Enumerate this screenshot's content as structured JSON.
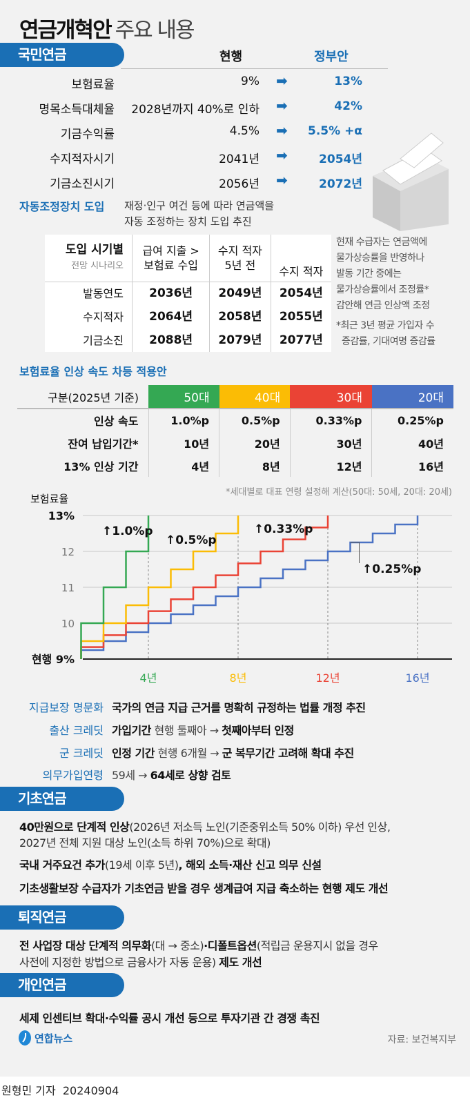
{
  "title": {
    "bold": "연금개혁안",
    "light": "주요 내용"
  },
  "national": {
    "section": "국민연금",
    "col_current": "현행",
    "col_gov": "정부안",
    "rows": [
      {
        "label": "보험료율",
        "current": "9%",
        "gov": "13%"
      },
      {
        "label": "명목소득대체율",
        "current": "2028년까지 40%로 인하",
        "gov": "42%"
      },
      {
        "label": "기금수익률",
        "current": "4.5%",
        "gov": "5.5% +α"
      },
      {
        "label": "수지적자시기",
        "current": "2041년",
        "gov": "2054년"
      },
      {
        "label": "기금소진시기",
        "current": "2056년",
        "gov": "2072년"
      }
    ],
    "arrow_icon": "right-arrow-icon",
    "auto": {
      "label": "자동조정장치 도입",
      "desc1": "재정·인구 여건 등에 따라 연금액을",
      "desc2": "자동 조정하는 장치 도입 추진"
    },
    "scenario": {
      "h0a": "도입 시기별",
      "h0b": "전망 시나리오",
      "h1a": "급여 지출 >",
      "h1b": "보험료 수입",
      "h2a": "수지 적자",
      "h2b": "5년 전",
      "h3": "수지 적자",
      "rows": [
        {
          "label": "발동연도",
          "v": [
            "2036년",
            "2049년",
            "2054년"
          ]
        },
        {
          "label": "수지적자",
          "v": [
            "2064년",
            "2058년",
            "2055년"
          ]
        },
        {
          "label": "기금소진",
          "v": [
            "2088년",
            "2079년",
            "2077년"
          ]
        }
      ]
    },
    "side_note": [
      "현재 수급자는 연금액에",
      "물가상승률을 반영하나",
      "발동 기간 중에는",
      "물가상승률에서 조정률*",
      "감안해 연금 인상액 조정"
    ],
    "side_foot": [
      "*최근 3년 평균 가입자 수",
      "증감률, 기대여명 증감률"
    ],
    "speed": {
      "title": "보험료율 인상 속도 차등 적용안",
      "head": "구분(2025년 기준)",
      "groups": [
        "50대",
        "40대",
        "30대",
        "20대"
      ],
      "colors": [
        "#34a853",
        "#fbbc05",
        "#ea4335",
        "#4a72c4"
      ],
      "rows": [
        {
          "label": "인상 속도",
          "v": [
            "1.0%p",
            "0.5%p",
            "0.33%p",
            "0.25%p"
          ]
        },
        {
          "label": "잔여 납입기간*",
          "v": [
            "10년",
            "20년",
            "30년",
            "40년"
          ]
        },
        {
          "label": "13% 인상 기간",
          "v": [
            "4년",
            "8년",
            "12년",
            "16년"
          ]
        }
      ],
      "note": "*세대별로 대표 연령 설정해 계산(50대: 50세, 20대: 20세)"
    },
    "others": [
      {
        "label": "지급보장 명문화",
        "seg": [
          {
            "t": "국가의 연금 지급 근거를 명확히 규정하는 법률 개정 추진",
            "b": true
          }
        ]
      },
      {
        "label": "출산 크레딧",
        "seg": [
          {
            "t": "가입기간",
            "b": true
          },
          {
            "t": " 현행 둘째아 → ",
            "b": false
          },
          {
            "t": "첫째아부터 인정",
            "b": true
          }
        ]
      },
      {
        "label": "군 크레딧",
        "seg": [
          {
            "t": "인정 기간",
            "b": true
          },
          {
            "t": " 현행 6개월 → ",
            "b": false
          },
          {
            "t": "군 복무기간 고려해 확대 추진",
            "b": true
          }
        ]
      },
      {
        "label": "의무가입연령",
        "seg": [
          {
            "t": "59세 → ",
            "b": false
          },
          {
            "t": "64세로 상향 검토",
            "b": true
          }
        ]
      }
    ]
  },
  "chart_data": {
    "type": "line",
    "ylabel": "보험료율",
    "ytick_labels": [
      "현행 9%",
      "10",
      "11",
      "12",
      "13%"
    ],
    "ylim": [
      9,
      13
    ],
    "xtick_labels": [
      "4년",
      "8년",
      "12년",
      "16년"
    ],
    "xticks": [
      4,
      8,
      12,
      16
    ],
    "grid": true,
    "series": [
      {
        "rate": 1.0,
        "years": 4,
        "color": "#34a853",
        "label": "↑1.0%p"
      },
      {
        "rate": 0.5,
        "years": 8,
        "color": "#fbbc05",
        "label": "↑0.5%p"
      },
      {
        "rate": 0.3333,
        "years": 12,
        "color": "#ea4335",
        "label": "↑0.33%p"
      },
      {
        "rate": 0.25,
        "years": 16,
        "color": "#4a72c4",
        "label": "↑0.25%p"
      }
    ]
  },
  "basic": {
    "section": "기초연금",
    "items": [
      [
        {
          "t": "40만원으로 단계적 인상",
          "b": true
        },
        {
          "t": "(2026년 저소득 노인(기준중위소득 50% 이하) 우선 인상,",
          "b": false
        }
      ],
      [
        {
          "t": "2027년 전체 지원 대상 노인(소득 하위 70%)으로 확대)",
          "b": false
        }
      ],
      [
        {
          "t": "국내 거주요건 추가",
          "b": true
        },
        {
          "t": "(19세 이후 5년)",
          "b": false
        },
        {
          "t": ", 해외 소득·재산 신고 의무 신설",
          "b": true
        }
      ],
      [
        {
          "t": "기초생활보장 수급자가 기초연금 받을 경우 생계급여 지급 축소하는 현행 제도 개선",
          "b": true
        }
      ]
    ]
  },
  "retire": {
    "section": "퇴직연금",
    "items": [
      [
        {
          "t": "전 사업장 대상 단계적 의무화",
          "b": true
        },
        {
          "t": "(대 → 중소)",
          "b": false
        },
        {
          "t": "·디폴트옵션",
          "b": true
        },
        {
          "t": "(적립금 운용지시 없을 경우",
          "b": false
        }
      ],
      [
        {
          "t": "사전에 지정한 방법으로 금융사가 자동 운용) ",
          "b": false
        },
        {
          "t": "제도 개선",
          "b": true
        }
      ]
    ]
  },
  "personal": {
    "section": "개인연금",
    "items": [
      [
        {
          "t": "세제 인센티브 확대·수익률 공시 개선 등으로 투자기관 간 경쟁 촉진",
          "b": true
        }
      ]
    ]
  },
  "footer": {
    "logo": "연합뉴스",
    "source": "자료: 보건복지부",
    "byline": "원형민 기자",
    "date": "20240904"
  }
}
